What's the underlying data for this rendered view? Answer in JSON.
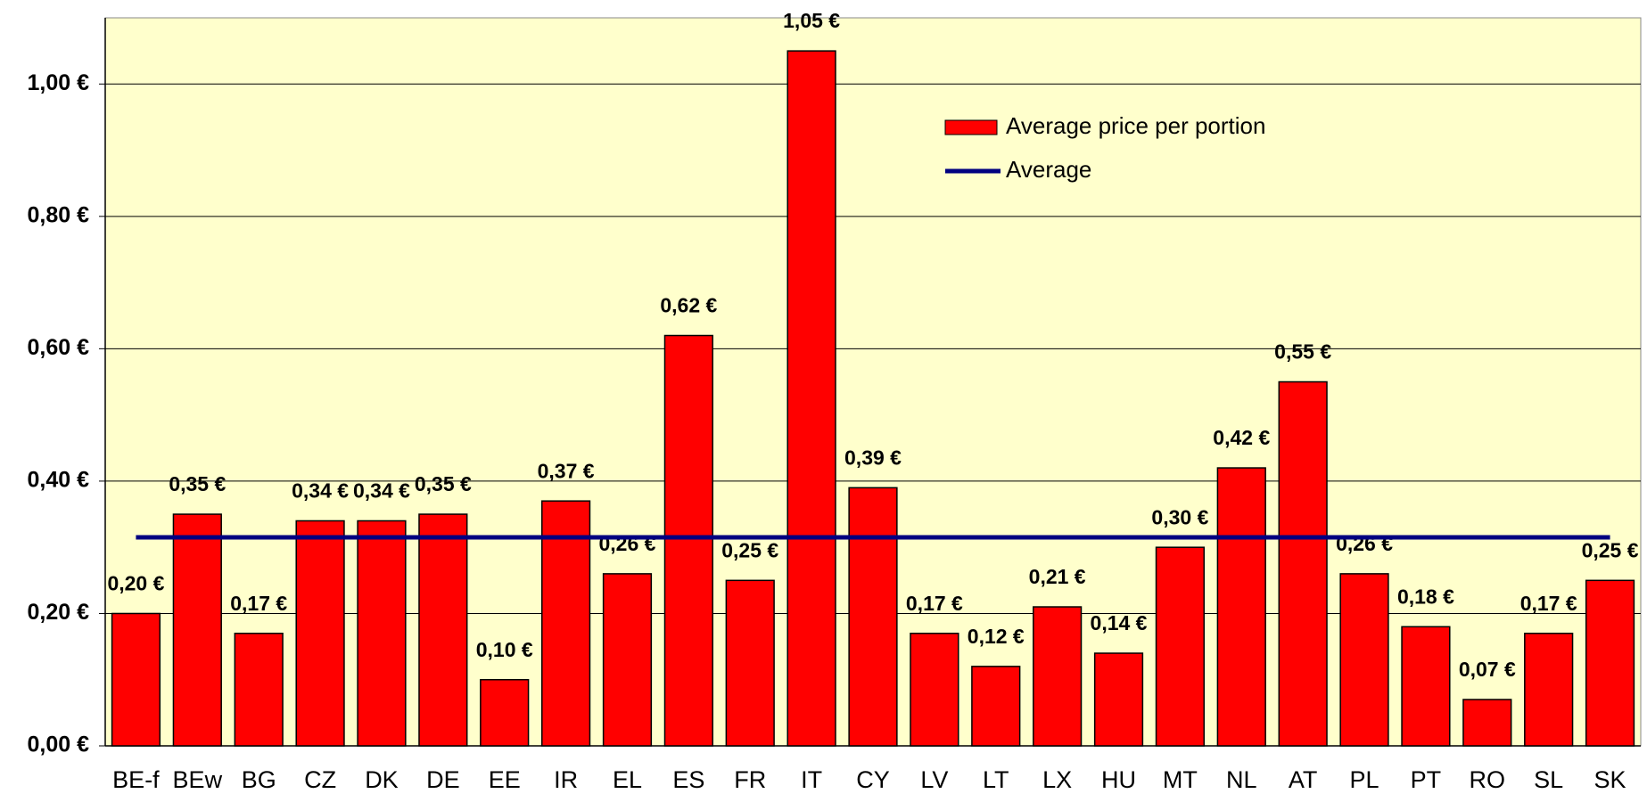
{
  "chart_data": {
    "type": "bar",
    "categories": [
      "BE-f",
      "BEw",
      "BG",
      "CZ",
      "DK",
      "DE",
      "EE",
      "IR",
      "EL",
      "ES",
      "FR",
      "IT",
      "CY",
      "LV",
      "LT",
      "LX",
      "HU",
      "MT",
      "NL",
      "AT",
      "PL",
      "PT",
      "RO",
      "SL",
      "SK"
    ],
    "series": [
      {
        "name": "Average price per portion",
        "color": "#ff0000",
        "values": [
          0.2,
          0.35,
          0.17,
          0.34,
          0.34,
          0.35,
          0.1,
          0.37,
          0.26,
          0.62,
          0.25,
          1.05,
          0.39,
          0.17,
          0.12,
          0.21,
          0.14,
          0.3,
          0.42,
          0.55,
          0.26,
          0.18,
          0.07,
          0.17,
          0.25
        ],
        "value_labels": [
          "0,20 €",
          "0,35 €",
          "0,17 €",
          "0,34 €",
          "0,34 €",
          "0,35 €",
          "0,10 €",
          "0,37 €",
          "0,26 €",
          "0,62 €",
          "0,25 €",
          "1,05 €",
          "0,39 €",
          "0,17 €",
          "0,12 €",
          "0,21 €",
          "0,14 €",
          "0,30 €",
          "0,42 €",
          "0,55 €",
          "0,26 €",
          "0,18 €",
          "0,07 €",
          "0,17 €",
          "0,25 €"
        ]
      },
      {
        "name": "Average",
        "color": "#000080",
        "type": "line",
        "values": [
          0.315,
          0.315,
          0.315,
          0.315,
          0.315,
          0.315,
          0.315,
          0.315,
          0.315,
          0.315,
          0.315,
          0.315,
          0.315,
          0.315,
          0.315,
          0.315,
          0.315,
          0.315,
          0.315,
          0.315,
          0.315,
          0.315,
          0.315,
          0.315,
          0.315
        ]
      }
    ],
    "ylim": [
      0,
      1.1
    ],
    "yticks": [
      {
        "value": 0,
        "label": "0,00 €"
      },
      {
        "value": 0.2,
        "label": "0,20 €"
      },
      {
        "value": 0.4,
        "label": "0,40 €"
      },
      {
        "value": 0.6,
        "label": "0,60 €"
      },
      {
        "value": 0.8,
        "label": "0,80 €"
      },
      {
        "value": 1.0,
        "label": "1,00 €"
      }
    ],
    "grid": true,
    "legend": "upper-center",
    "background": "#ffffcc"
  }
}
